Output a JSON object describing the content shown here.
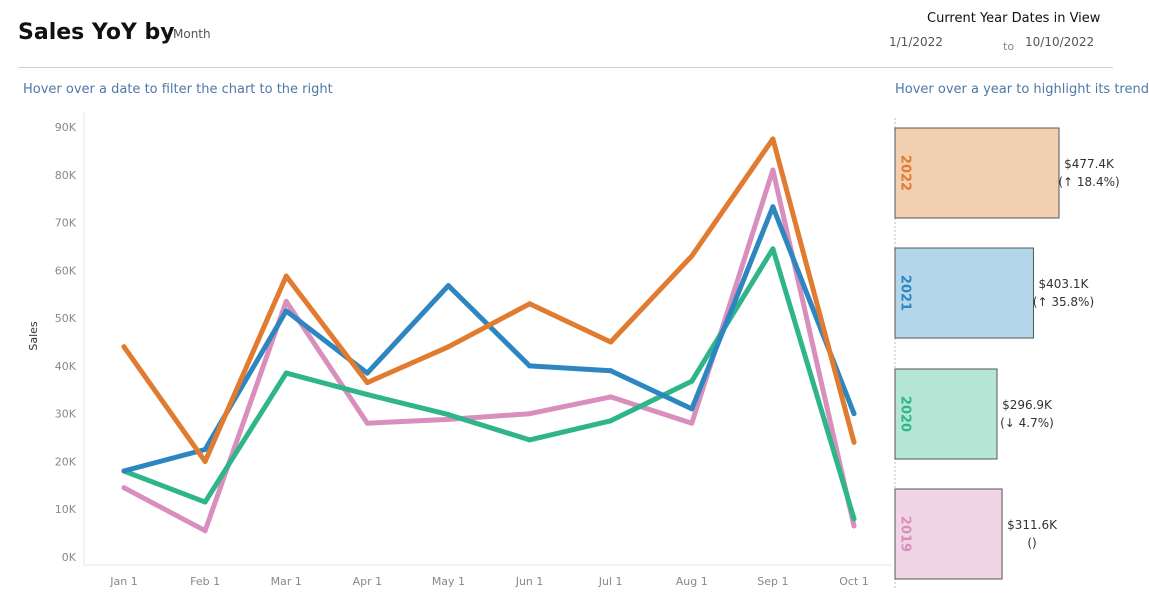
{
  "header": {
    "title": "Sales YoY by",
    "param_value": "Month",
    "dates_title": "Current Year Dates in View",
    "date_start": "1/1/2022",
    "date_to": "to",
    "date_end": "10/10/2022"
  },
  "subtitles": {
    "left": "Hover over a date to filter the chart to the right",
    "right": "Hover over a year to highlight its trend"
  },
  "chart_data": [
    {
      "type": "line",
      "ylabel": "Sales",
      "xlabel": "",
      "ylim": [
        0,
        90000
      ],
      "yticks": [
        0,
        10000,
        20000,
        30000,
        40000,
        50000,
        60000,
        70000,
        80000,
        90000
      ],
      "ytick_labels": [
        "0K",
        "10K",
        "20K",
        "30K",
        "40K",
        "50K",
        "60K",
        "70K",
        "80K",
        "90K"
      ],
      "categories": [
        "Jan 1",
        "Feb 1",
        "Mar 1",
        "Apr 1",
        "May 1",
        "Jun 1",
        "Jul 1",
        "Aug 1",
        "Sep 1",
        "Oct 1"
      ],
      "grid": "none",
      "series": [
        {
          "name": "2019",
          "color": "#d98fbd",
          "values": [
            14500,
            5500,
            53500,
            28000,
            28800,
            30000,
            33500,
            28000,
            81000,
            6500
          ]
        },
        {
          "name": "2020",
          "color": "#2fb58a",
          "values": [
            18000,
            11500,
            38500,
            34000,
            29800,
            24500,
            28500,
            36800,
            64500,
            8000
          ]
        },
        {
          "name": "2021",
          "color": "#2e86c1",
          "values": [
            18000,
            22500,
            51500,
            38500,
            56800,
            40000,
            39000,
            31000,
            73300,
            30000
          ]
        },
        {
          "name": "2022",
          "color": "#e07b30",
          "values": [
            44000,
            20000,
            58800,
            36500,
            44000,
            53000,
            45000,
            63000,
            87500,
            24000
          ]
        }
      ]
    },
    {
      "type": "bar",
      "orientation": "horizontal",
      "categories": [
        "2022",
        "2021",
        "2020",
        "2019"
      ],
      "values": [
        477400,
        403100,
        296900,
        311600
      ],
      "value_labels": [
        "$477.4K",
        "$403.1K",
        "$296.9K",
        "$311.6K"
      ],
      "change_labels": [
        "(↑ 18.4%)",
        "(↑ 35.8%)",
        "(↓ 4.7%)",
        "()"
      ],
      "colors": [
        "#e07b30",
        "#2e86c1",
        "#2fb58a",
        "#d98fbd"
      ],
      "fill_colors": [
        "#f2cfb0",
        "#b3d6e8",
        "#b5e5d5",
        "#efd5e6"
      ]
    }
  ]
}
